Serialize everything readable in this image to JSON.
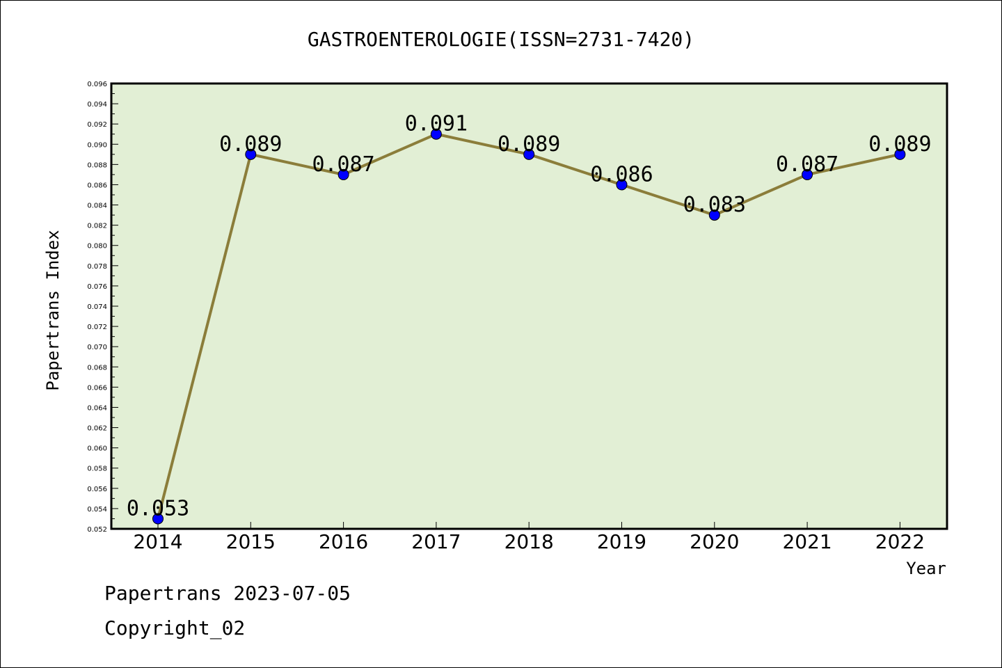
{
  "chart_data": {
    "type": "line",
    "title": "GASTROENTEROLOGIE(ISSN=2731-7420)",
    "xlabel": "Year",
    "ylabel": "Papertrans Index",
    "categories": [
      "2014",
      "2015",
      "2016",
      "2017",
      "2018",
      "2019",
      "2020",
      "2021",
      "2022"
    ],
    "values": [
      0.053,
      0.089,
      0.087,
      0.091,
      0.089,
      0.086,
      0.083,
      0.087,
      0.089
    ],
    "data_labels": [
      "0.053",
      "0.089",
      "0.087",
      "0.091",
      "0.089",
      "0.086",
      "0.083",
      "0.087",
      "0.089"
    ],
    "ylim": [
      0.052,
      0.096
    ],
    "yticks": [
      "0.052",
      "0.054",
      "0.056",
      "0.058",
      "0.060",
      "0.062",
      "0.064",
      "0.066",
      "0.068",
      "0.070",
      "0.072",
      "0.074",
      "0.076",
      "0.078",
      "0.080",
      "0.082",
      "0.084",
      "0.086",
      "0.088",
      "0.090",
      "0.092",
      "0.094",
      "0.096"
    ],
    "grid": false,
    "colors": {
      "plot_background": "#e2efd5",
      "line": "#8b7d3a",
      "marker": "#0000ff"
    }
  },
  "footer": {
    "source": "Papertrans 2023-07-05",
    "copyright": "Copyright_02"
  }
}
